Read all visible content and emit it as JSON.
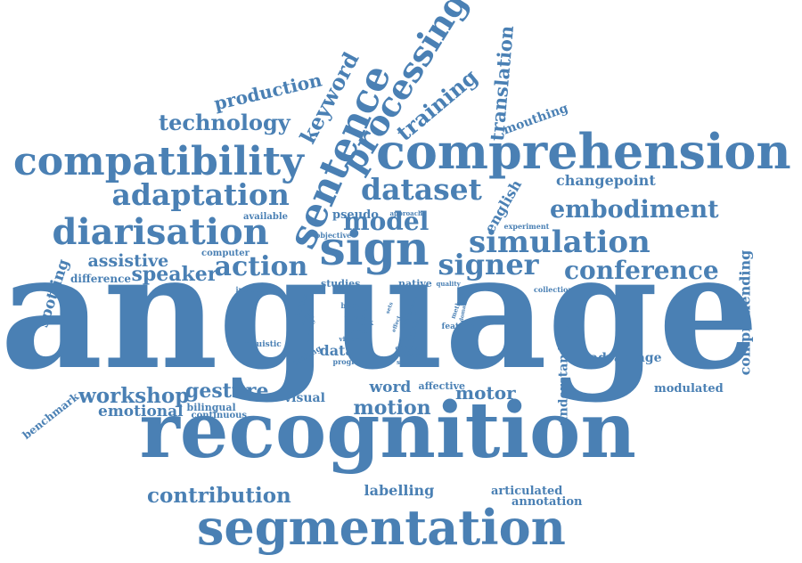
{
  "color": "#4a80b4",
  "background": "#ffffff",
  "words": [
    "language",
    "recognition",
    "segmentation",
    "comprehension",
    "compatibility",
    "sentence",
    "sign",
    "processing",
    "diarisation",
    "adaptation",
    "dataset",
    "simulation",
    "signer",
    "action",
    "model",
    "conference",
    "embodiment",
    "keyword",
    "technology",
    "training",
    "translation",
    "production",
    "contribution",
    "motion",
    "workshop",
    "gesture",
    "comprehending",
    "speaker",
    "assistive",
    "spotting",
    "understanding",
    "changepoint",
    "english",
    "labelling",
    "motor",
    "mouthing",
    "emotional",
    "word",
    "advantage",
    "modulated",
    "annotation",
    "articulated",
    "data",
    "visual",
    "benchmark",
    "difference",
    "pseudo",
    "available",
    "computer",
    "studies",
    "native",
    "affective",
    "bilingual",
    "continuous",
    "linguistic",
    "scaling",
    "progress",
    "feature",
    "introduce",
    "collection",
    "objective",
    "approach",
    "experiment",
    "body",
    "task",
    "work",
    "slrtp",
    "vision",
    "context",
    "sdtrack",
    "source",
    "quality",
    "footage",
    "video",
    "bubble",
    "cue",
    "result",
    "scale",
    "method",
    "domain",
    "sechear",
    "sets",
    "effect"
  ]
}
